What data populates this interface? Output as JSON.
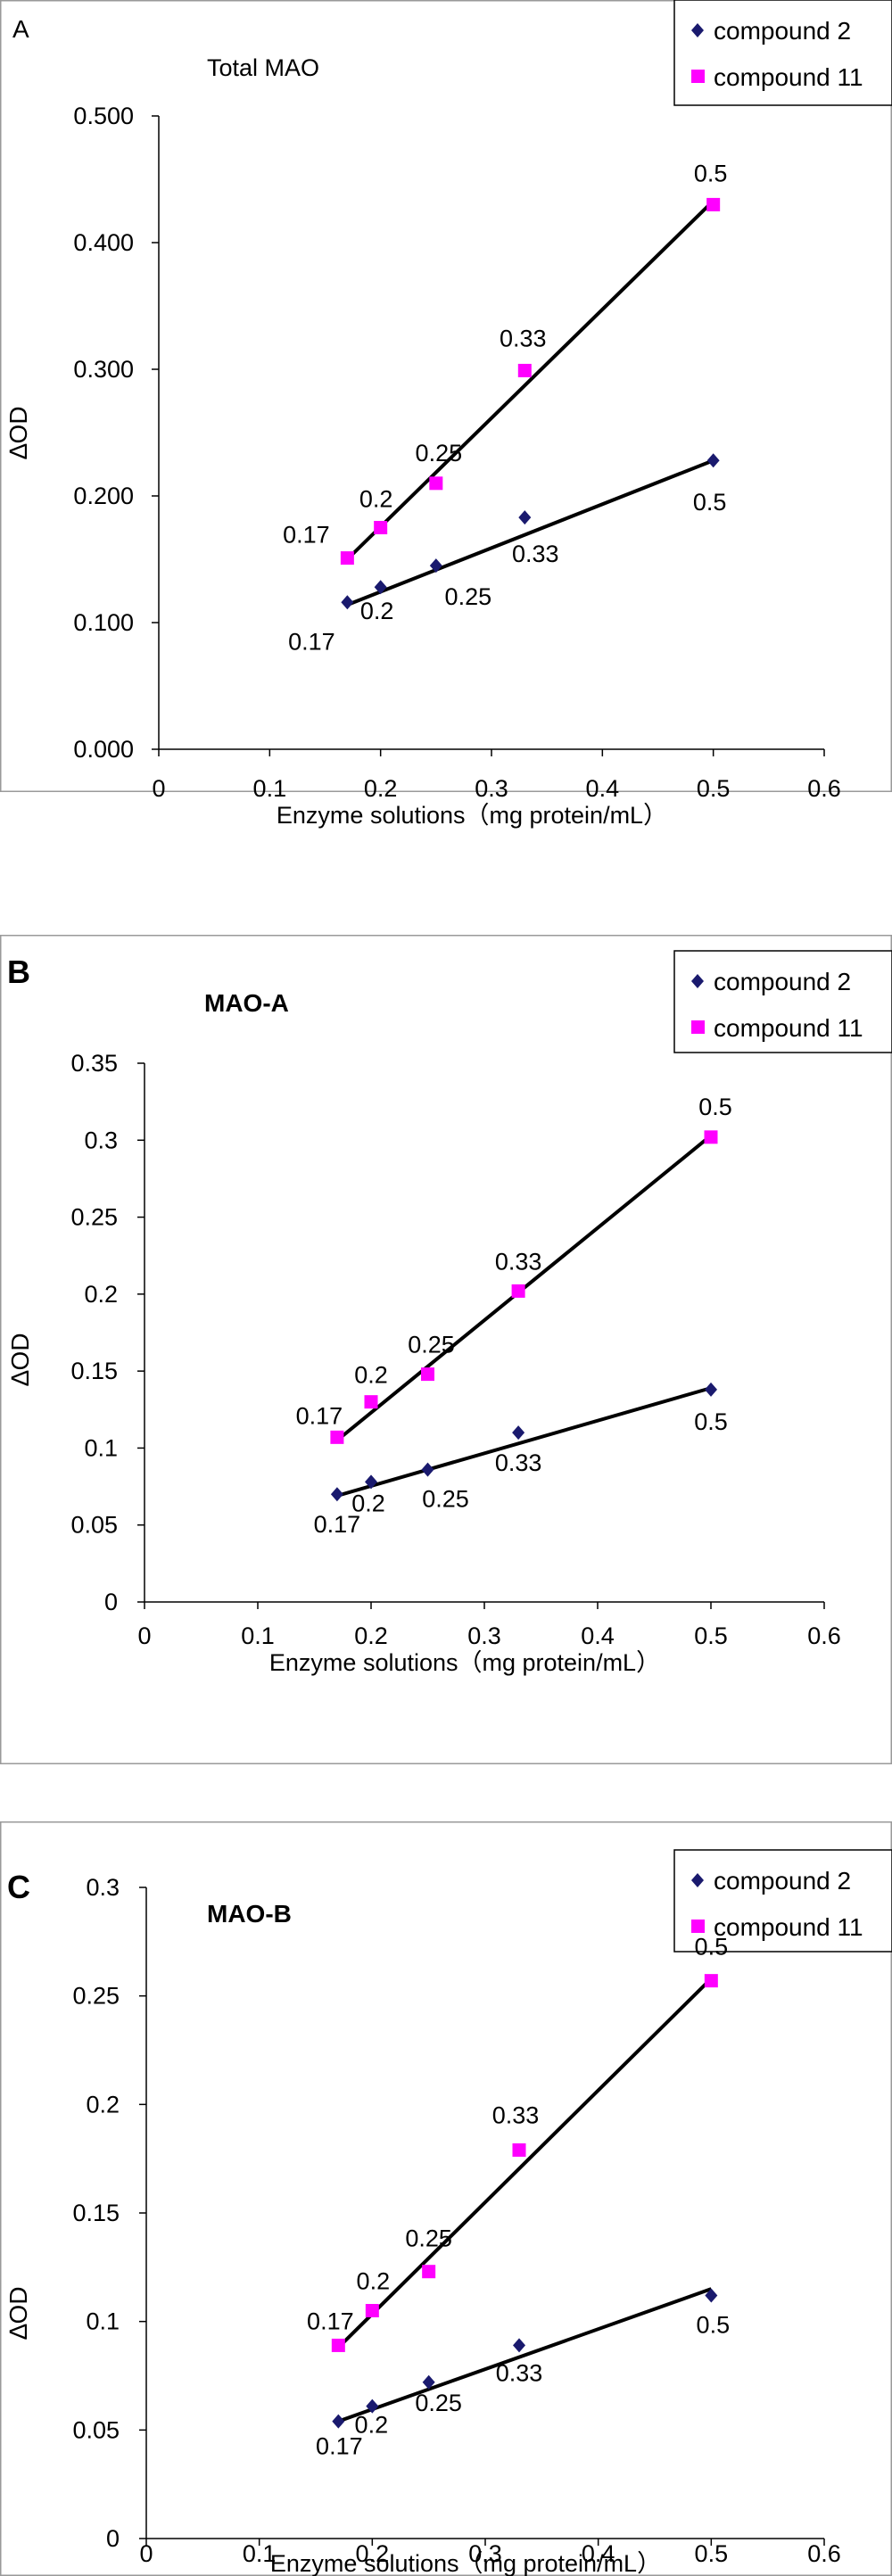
{
  "legend_labels": [
    "compound 2",
    "compound 11"
  ],
  "xlabel": "Enzyme solutions（mg protein/mL）",
  "ylabel": "∆OD",
  "colors": {
    "compound_2": "#1a1a6e",
    "compound_11": "#ff00ff",
    "fit_line": "#000000",
    "axis": "#000000",
    "frame": "#9a9a9a"
  },
  "chart_data": [
    {
      "type": "scatter",
      "panel_letter": "A",
      "title": "Total  MAO",
      "xlabel": "Enzyme solutions（mg protein/mL）",
      "ylabel": "∆OD",
      "xlim": [
        0,
        0.6
      ],
      "ylim": [
        0,
        0.5
      ],
      "x_ticks": [
        "0",
        "0.1",
        "0.2",
        "0.3",
        "0.4",
        "0.5",
        "0.6"
      ],
      "y_ticks": [
        "0.000",
        "0.100",
        "0.200",
        "0.300",
        "0.400",
        "0.500"
      ],
      "grid": false,
      "legend_position": "top-right",
      "series": [
        {
          "name": "compound 2",
          "marker": "diamond",
          "x": [
            0.17,
            0.2,
            0.25,
            0.33,
            0.5
          ],
          "y": [
            0.116,
            0.128,
            0.145,
            0.183,
            0.228
          ],
          "labels": [
            "0.17",
            "0.2",
            "0.25",
            "0.33",
            "0.5"
          ],
          "trendline": [
            [
              0.17,
              0.114
            ],
            [
              0.5,
              0.228
            ]
          ]
        },
        {
          "name": "compound 11",
          "marker": "square",
          "x": [
            0.17,
            0.2,
            0.25,
            0.33,
            0.5
          ],
          "y": [
            0.151,
            0.175,
            0.21,
            0.299,
            0.43
          ],
          "labels": [
            "0.17",
            "0.2",
            "0.25",
            "0.33",
            "0.5"
          ],
          "trendline": [
            [
              0.17,
              0.15
            ],
            [
              0.5,
              0.433
            ]
          ]
        }
      ]
    },
    {
      "type": "scatter",
      "panel_letter": "B",
      "title": "MAO-A",
      "xlabel": "Enzyme solutions（mg protein/mL）",
      "ylabel": "∆OD",
      "xlim": [
        0,
        0.6
      ],
      "ylim": [
        0,
        0.35
      ],
      "x_ticks": [
        "0",
        "0.1",
        "0.2",
        "0.3",
        "0.4",
        "0.5",
        "0.6"
      ],
      "y_ticks": [
        "0",
        "0.05",
        "0.1",
        "0.15",
        "0.2",
        "0.25",
        "0.3",
        "0.35"
      ],
      "grid": false,
      "legend_position": "top-right",
      "series": [
        {
          "name": "compound 2",
          "marker": "diamond",
          "x": [
            0.17,
            0.2,
            0.25,
            0.33,
            0.5
          ],
          "y": [
            0.07,
            0.078,
            0.086,
            0.11,
            0.138
          ],
          "labels": [
            "0.17",
            "0.2",
            "0.25",
            "0.33",
            "0.5"
          ],
          "trendline": [
            [
              0.17,
              0.069
            ],
            [
              0.5,
              0.139
            ]
          ]
        },
        {
          "name": "compound 11",
          "marker": "square",
          "x": [
            0.17,
            0.2,
            0.25,
            0.33,
            0.5
          ],
          "y": [
            0.107,
            0.13,
            0.148,
            0.202,
            0.302
          ],
          "labels": [
            "0.17",
            "0.2",
            "0.25",
            "0.33",
            "0.5"
          ],
          "trendline": [
            [
              0.17,
              0.105
            ],
            [
              0.5,
              0.303
            ]
          ]
        }
      ]
    },
    {
      "type": "scatter",
      "panel_letter": "C",
      "title": "MAO-B",
      "xlabel": "Enzyme solutions（mg protein/mL）",
      "ylabel": "∆OD",
      "xlim": [
        0,
        0.6
      ],
      "ylim": [
        0,
        0.3
      ],
      "x_ticks": [
        "0",
        "0.1",
        "0.2",
        "0.3",
        "0.4",
        "0.5",
        "0.6"
      ],
      "y_ticks": [
        "0",
        "0.05",
        "0.1",
        "0.15",
        "0.2",
        "0.25",
        "0.3"
      ],
      "grid": false,
      "legend_position": "top-right",
      "series": [
        {
          "name": "compound 2",
          "marker": "diamond",
          "x": [
            0.17,
            0.2,
            0.25,
            0.33,
            0.5
          ],
          "y": [
            0.054,
            0.061,
            0.072,
            0.089,
            0.112
          ],
          "labels": [
            "0.17",
            "0.2",
            "0.25",
            "0.33",
            "0.5"
          ],
          "trendline": [
            [
              0.17,
              0.054
            ],
            [
              0.5,
              0.115
            ]
          ]
        },
        {
          "name": "compound 11",
          "marker": "square",
          "x": [
            0.17,
            0.2,
            0.25,
            0.33,
            0.5
          ],
          "y": [
            0.089,
            0.105,
            0.123,
            0.179,
            0.257
          ],
          "labels": [
            "0.17",
            "0.2",
            "0.25",
            "0.33",
            "0.5"
          ],
          "trendline": [
            [
              0.17,
              0.088
            ],
            [
              0.5,
              0.258
            ]
          ]
        }
      ]
    }
  ]
}
